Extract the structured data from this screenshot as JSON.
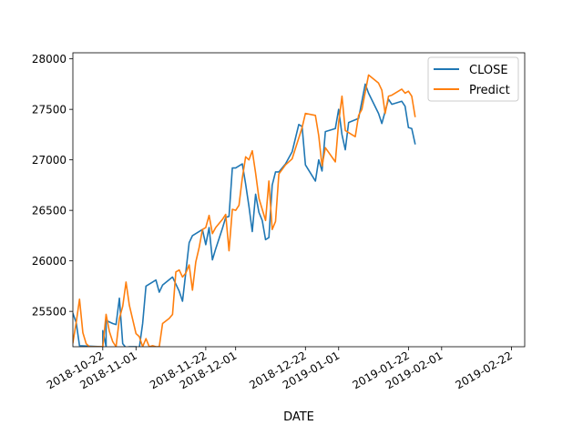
{
  "chart_data": {
    "type": "line",
    "title": "",
    "xlabel": "DATE",
    "ylabel": "",
    "x_type": "date",
    "xlim": [
      "2018-10-13",
      "2019-02-26"
    ],
    "ylim": [
      25150,
      28060
    ],
    "x_ticks": [
      {
        "date": "2018-10-22",
        "label": "2018-10-22"
      },
      {
        "date": "2018-11-01",
        "label": "2018-11-01"
      },
      {
        "date": "2018-11-22",
        "label": "2018-11-22"
      },
      {
        "date": "2018-12-01",
        "label": "2018-12-01"
      },
      {
        "date": "2018-12-22",
        "label": "2018-12-22"
      },
      {
        "date": "2019-01-01",
        "label": "2019-01-01"
      },
      {
        "date": "2019-01-22",
        "label": "2019-01-22"
      },
      {
        "date": "2019-02-01",
        "label": "2019-02-01"
      },
      {
        "date": "2019-02-22",
        "label": "2019-02-22"
      }
    ],
    "y_ticks": [
      25500,
      26000,
      26500,
      27000,
      27500,
      28000
    ],
    "y_tick_labels": [
      "25500",
      "26000",
      "26500",
      "27000",
      "27500",
      "28000"
    ],
    "grid": false,
    "legend_position": "upper right",
    "series": [
      {
        "name": "CLOSE",
        "color": "#1f77b4",
        "points": [
          [
            "2018-10-13",
            25480
          ],
          [
            "2018-10-14",
            25390
          ],
          [
            "2018-10-15",
            25160
          ],
          [
            "2018-10-22",
            25150
          ],
          [
            "2018-10-22",
            25310
          ],
          [
            "2018-10-23",
            25150
          ],
          [
            "2018-10-23",
            25410
          ],
          [
            "2018-10-25",
            25380
          ],
          [
            "2018-10-26",
            25370
          ],
          [
            "2018-10-27",
            25630
          ],
          [
            "2018-10-28",
            25180
          ],
          [
            "2018-10-29",
            25140
          ],
          [
            "2018-10-30",
            25150
          ],
          [
            "2018-11-01",
            25150
          ],
          [
            "2018-11-02",
            25140
          ],
          [
            "2018-11-03",
            25380
          ],
          [
            "2018-11-04",
            25750
          ],
          [
            "2018-11-06",
            25790
          ],
          [
            "2018-11-07",
            25810
          ],
          [
            "2018-11-08",
            25690
          ],
          [
            "2018-11-09",
            25760
          ],
          [
            "2018-11-12",
            25840
          ],
          [
            "2018-11-14",
            25700
          ],
          [
            "2018-11-15",
            25600
          ],
          [
            "2018-11-16",
            25890
          ],
          [
            "2018-11-17",
            26180
          ],
          [
            "2018-11-18",
            26250
          ],
          [
            "2018-11-20",
            26290
          ],
          [
            "2018-11-21",
            26310
          ],
          [
            "2018-11-22",
            26160
          ],
          [
            "2018-11-23",
            26330
          ],
          [
            "2018-11-24",
            26010
          ],
          [
            "2018-11-25",
            26120
          ],
          [
            "2018-11-27",
            26320
          ],
          [
            "2018-11-28",
            26430
          ],
          [
            "2018-11-29",
            26440
          ],
          [
            "2018-11-30",
            26920
          ],
          [
            "2018-12-01",
            26920
          ],
          [
            "2018-12-02",
            26940
          ],
          [
            "2018-12-03",
            26960
          ],
          [
            "2018-12-04",
            26760
          ],
          [
            "2018-12-05",
            26540
          ],
          [
            "2018-12-06",
            26290
          ],
          [
            "2018-12-07",
            26660
          ],
          [
            "2018-12-08",
            26480
          ],
          [
            "2018-12-09",
            26400
          ],
          [
            "2018-12-10",
            26210
          ],
          [
            "2018-12-11",
            26230
          ],
          [
            "2018-12-12",
            26750
          ],
          [
            "2018-12-13",
            26880
          ],
          [
            "2018-12-14",
            26880
          ],
          [
            "2018-12-16",
            26960
          ],
          [
            "2018-12-18",
            27080
          ],
          [
            "2018-12-20",
            27350
          ],
          [
            "2018-12-21",
            27330
          ],
          [
            "2018-12-22",
            26950
          ],
          [
            "2018-12-25",
            26790
          ],
          [
            "2018-12-26",
            27000
          ],
          [
            "2018-12-27",
            26890
          ],
          [
            "2018-12-28",
            27280
          ],
          [
            "2018-12-31",
            27310
          ],
          [
            "2019-01-01",
            27500
          ],
          [
            "2019-01-02",
            27250
          ],
          [
            "2019-01-03",
            27100
          ],
          [
            "2019-01-04",
            27370
          ],
          [
            "2019-01-07",
            27410
          ],
          [
            "2019-01-09",
            27750
          ],
          [
            "2019-01-10",
            27660
          ],
          [
            "2019-01-13",
            27460
          ],
          [
            "2019-01-14",
            27360
          ],
          [
            "2019-01-16",
            27600
          ],
          [
            "2019-01-17",
            27550
          ],
          [
            "2019-01-20",
            27580
          ],
          [
            "2019-01-21",
            27530
          ],
          [
            "2019-01-22",
            27320
          ],
          [
            "2019-01-23",
            27310
          ],
          [
            "2019-01-24",
            27160
          ]
        ]
      },
      {
        "name": "Predict",
        "color": "#ff7f0e",
        "points": [
          [
            "2018-10-13",
            25190
          ],
          [
            "2018-10-14",
            25390
          ],
          [
            "2018-10-15",
            25620
          ],
          [
            "2018-10-16",
            25290
          ],
          [
            "2018-10-17",
            25180
          ],
          [
            "2018-10-18",
            25150
          ],
          [
            "2018-10-22",
            25150
          ],
          [
            "2018-10-23",
            25470
          ],
          [
            "2018-10-24",
            25300
          ],
          [
            "2018-10-25",
            25200
          ],
          [
            "2018-10-26",
            25150
          ],
          [
            "2018-10-27",
            25430
          ],
          [
            "2018-10-28",
            25550
          ],
          [
            "2018-10-29",
            25790
          ],
          [
            "2018-10-30",
            25560
          ],
          [
            "2018-11-01",
            25280
          ],
          [
            "2018-11-02",
            25250
          ],
          [
            "2018-11-03",
            25150
          ],
          [
            "2018-11-04",
            25230
          ],
          [
            "2018-11-05",
            25150
          ],
          [
            "2018-11-06",
            25160
          ],
          [
            "2018-11-07",
            25150
          ],
          [
            "2018-11-08",
            25150
          ],
          [
            "2018-11-09",
            25380
          ],
          [
            "2018-11-11",
            25430
          ],
          [
            "2018-11-12",
            25470
          ],
          [
            "2018-11-13",
            25890
          ],
          [
            "2018-11-14",
            25910
          ],
          [
            "2018-11-15",
            25840
          ],
          [
            "2018-11-16",
            25880
          ],
          [
            "2018-11-17",
            25960
          ],
          [
            "2018-11-18",
            25710
          ],
          [
            "2018-11-19",
            25990
          ],
          [
            "2018-11-20",
            26130
          ],
          [
            "2018-11-21",
            26310
          ],
          [
            "2018-11-22",
            26330
          ],
          [
            "2018-11-23",
            26450
          ],
          [
            "2018-11-24",
            26270
          ],
          [
            "2018-11-25",
            26330
          ],
          [
            "2018-11-27",
            26410
          ],
          [
            "2018-11-28",
            26460
          ],
          [
            "2018-11-29",
            26100
          ],
          [
            "2018-11-30",
            26510
          ],
          [
            "2018-12-01",
            26500
          ],
          [
            "2018-12-02",
            26550
          ],
          [
            "2018-12-03",
            26820
          ],
          [
            "2018-12-04",
            27030
          ],
          [
            "2018-12-05",
            27000
          ],
          [
            "2018-12-06",
            27090
          ],
          [
            "2018-12-07",
            26870
          ],
          [
            "2018-12-08",
            26620
          ],
          [
            "2018-12-10",
            26400
          ],
          [
            "2018-12-11",
            26790
          ],
          [
            "2018-12-12",
            26310
          ],
          [
            "2018-12-13",
            26390
          ],
          [
            "2018-12-14",
            26860
          ],
          [
            "2018-12-16",
            26950
          ],
          [
            "2018-12-18",
            27010
          ],
          [
            "2018-12-21",
            27320
          ],
          [
            "2018-12-22",
            27460
          ],
          [
            "2018-12-25",
            27440
          ],
          [
            "2018-12-26",
            27240
          ],
          [
            "2018-12-27",
            26940
          ],
          [
            "2018-12-28",
            27120
          ],
          [
            "2018-12-31",
            26980
          ],
          [
            "2019-01-01",
            27370
          ],
          [
            "2019-01-02",
            27630
          ],
          [
            "2019-01-03",
            27290
          ],
          [
            "2019-01-06",
            27230
          ],
          [
            "2019-01-07",
            27440
          ],
          [
            "2019-01-08",
            27500
          ],
          [
            "2019-01-10",
            27840
          ],
          [
            "2019-01-13",
            27760
          ],
          [
            "2019-01-14",
            27690
          ],
          [
            "2019-01-15",
            27460
          ],
          [
            "2019-01-16",
            27630
          ],
          [
            "2019-01-17",
            27640
          ],
          [
            "2019-01-20",
            27700
          ],
          [
            "2019-01-21",
            27660
          ],
          [
            "2019-01-22",
            27680
          ],
          [
            "2019-01-23",
            27630
          ],
          [
            "2019-01-24",
            27430
          ]
        ]
      }
    ]
  }
}
